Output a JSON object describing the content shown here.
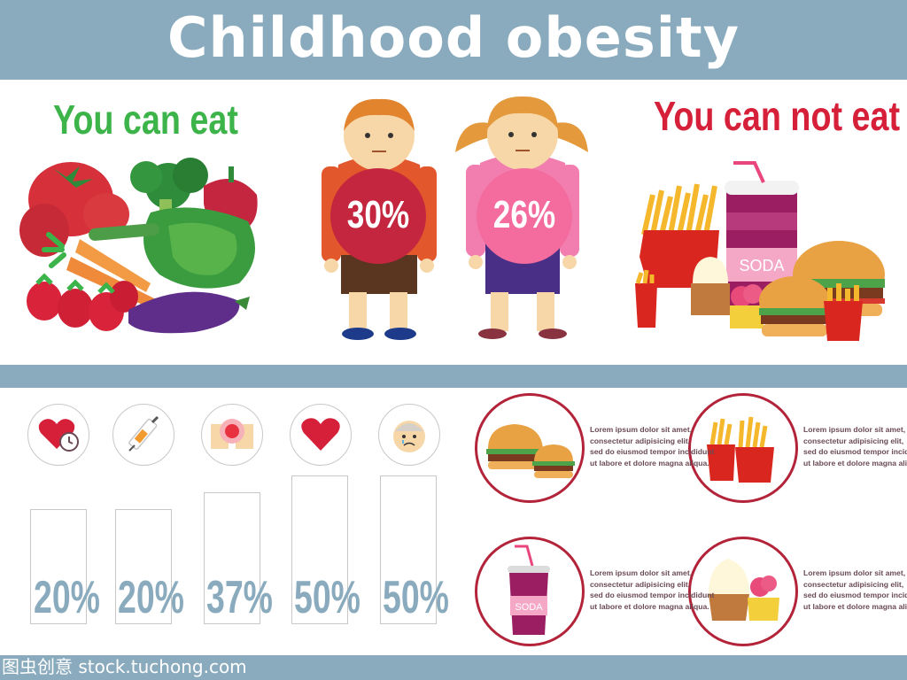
{
  "title": "Childhood obesity",
  "headings": {
    "can_eat": "You can eat",
    "can_not_eat": "You can not eat"
  },
  "children": [
    {
      "gender": "boy",
      "percent": "30%",
      "shirt_color": "#e2572b",
      "belly_color": "#c4263f"
    },
    {
      "gender": "girl",
      "percent": "26%",
      "shirt_color": "#f27eb0",
      "belly_color": "#f46b9e"
    }
  ],
  "soda_label": "SODA",
  "stats": [
    {
      "icon": "heart-clock-icon",
      "label": "20%",
      "value": 20
    },
    {
      "icon": "syringe-icon",
      "label": "20%",
      "value": 20
    },
    {
      "icon": "pain-spot-icon",
      "label": "37%",
      "value": 37
    },
    {
      "icon": "heart-icon",
      "label": "50%",
      "value": 50
    },
    {
      "icon": "sad-face-icon",
      "label": "50%",
      "value": 50
    }
  ],
  "foods": [
    {
      "icon": "burger-icon",
      "lines": [
        "Lorem ipsum dolor sit amet,",
        "consectetur adipisicing elit,",
        "sed do eiusmod tempor incididunt",
        "ut labore et dolore magna aliqua."
      ]
    },
    {
      "icon": "fries-icon",
      "lines": [
        "Lorem ipsum dolor sit amet,",
        "consectetur adipisicing elit,",
        "sed do eiusmod tempor incididunt",
        "ut labore et dolore magna aliqua."
      ]
    },
    {
      "icon": "soda-icon",
      "soda_label": "SODA",
      "lines": [
        "Lorem ipsum dolor sit amet,",
        "consectetur adipisicing elit,",
        "sed do eiusmod tempor incididunt",
        "ut labore et dolore magna aliqua."
      ]
    },
    {
      "icon": "cupcake-icon",
      "lines": [
        "Lorem ipsum dolor sit amet,",
        "consectetur adipisicing elit,",
        "sed do eiusmod tempor incididunt",
        "ut labore et dolore magna aliqua."
      ]
    }
  ],
  "watermark": "图虫创意 stock.tuchong.com",
  "colors": {
    "band": "#8aabbd",
    "green": "#3cb44a",
    "red": "#d6203a",
    "circle_border": "#b3243a"
  }
}
